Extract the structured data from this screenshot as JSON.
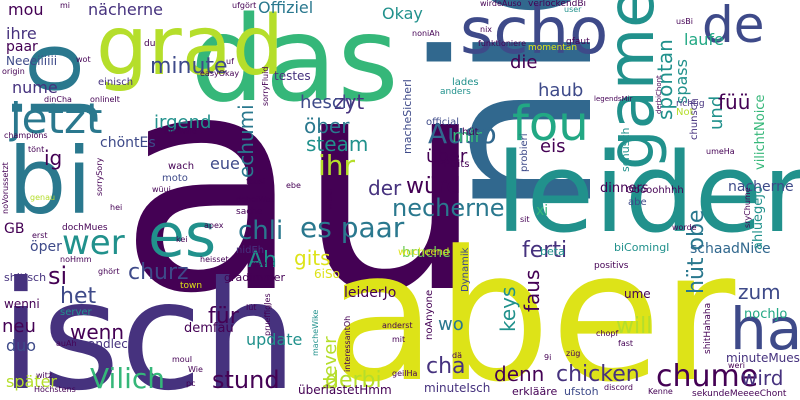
{
  "words": {
    "au": "au",
    "nid": "nid",
    "aber": "aber",
    "isch": "isch",
    "das": "das",
    "leider": "leider",
    "bi": "bi",
    "grad": "grad",
    "jo": "jo",
    "scho": "scho",
    "game": "game",
    "de": "de",
    "fou": "fou",
    "ha": "ha",
    "jetzt": "jetzt",
    "es": "es",
    "wer": "wer",
    "chume": "chume",
    "Vilich": "Vilich",
    "Auso": "Auso",
    "es_paar": "es paar",
    "chli": "chli",
    "nacherne1": "nächerne",
    "nacherne2": "nacherne",
    "necherne": "necherne",
    "minute": "minute",
    "zyt": "zyt",
    "hesch": "hesch",
    "steam": "steam",
    "ober": "öber",
    "ihr": "ihr",
    "uber": "über",
    "wurd": "würd",
    "der": "der",
    "churz": "churz",
    "gits": "gits",
    "fur": "für",
    "stund": "stund",
    "derbi": "derbi",
    "cha": "cha",
    "denn": "denn",
    "chicken": "chicken",
    "wird": "wird",
    "zum": "zum",
    "hut_obe": "hüt obe",
    "ferti": "ferti",
    "faus": "faus",
    "keys": "keys",
    "will": "will",
    "spontan": "spontan",
    "spass": "spass",
    "laufe": "laufe",
    "die": "die",
    "haub": "haub",
    "mir": "mir",
    "eis": "eis",
    "und": "und",
    "fuu": "füü",
    "mou": "mou",
    "ihre": "ihre",
    "paar": "paar",
    "nume": "nume",
    "ig": "ig",
    "si": "si",
    "het": "het",
    "neu": "neu",
    "wenn": "wenn",
    "duo": "duo",
    "spoter": "später",
    "Okay": "Okay",
    "Offiziel": "Offiziel",
    "irgend": "irgend",
    "chontEs": "chöntEs",
    "eue": "eue",
    "echumi": "echumi",
    "Ah": "Ah",
    "update": "update",
    "Never": "Never",
    "wo": "wo",
    "leiderJo": "leiderJo",
    "bruche": "bruche",
    "schaadNice": "schaadNice",
    "vilichtNoice": "vilichtNoice",
    "ahluegeJo": "ahluegeJo",
    "nochJo": "nochJo",
    "dinners": "dinners",
    "xi": "xi",
    "GB": "GB",
    "wenni": "wenni",
    "andlech": "andlech",
    "demfau": "demfau",
    "Neeeiiiiii": "Neeeiiiiii",
    "minuteMues": "minuteMues",
    "uberlastetHmm": "überlastetHmm",
    "minuteIsch": "minuteIsch",
    "erklare": "erklääre",
    "ufstoh": "ufstoh",
    "sekundeMeeeeChont": "sekundeMeeeeChont",
    "shitIsch": "shitIsch",
    "oper": "öper",
    "gradimmer": "gradimmer",
    "nidEh": "nidEh",
    "wucheend": "wucheend",
    "6iSo": "6iSo",
    "noAnyone": "noAnyone",
    "Dynamik": "Dynamik",
    "beta": "beta",
    "biComingI": "biComingI",
    "positivs": "positivs",
    "shitHahaha": "shitHahaha",
    "ume": "ume",
    "Ooooohhhh": "Ooooohhhh",
    "abe": "abe",
    "schusch": "schüsch",
    "machesicherI": "macheSicherI",
    "official": "official",
    "FPPGits": "FPPGits",
    "chunsch": "chunsch",
    "probieri": "probieri",
    "umeHa": "umeHa",
    "richtig": "richtig",
    "lades": "lades",
    "anders": "anders",
    "hut": "hüt",
    "Not": "Not",
    "testes": "testes",
    "einisch": "einisch",
    "dinCha": "dinCha",
    "onlineIt": "onlineIt",
    "champions": "champions",
    "tont": "tönt",
    "mehWie": "mehWie",
    "wach": "wach",
    "moto": "moto",
    "wuui": "wüui",
    "sorrySory": "sorrySory",
    "noVorussetzt": "noVorussetzt",
    "genau": "genau",
    "hei": "hei",
    "dochMues": "dochMues",
    "erst": "erst",
    "deheiWas": "deheiWas",
    "sache": "sache",
    "fausi": "fausi",
    "ebe": "ebe",
    "wider": "wider",
    "sit": "sit",
    "worde": "worde",
    "apex": "apex",
    "kei": "kei",
    "heisset": "heisset",
    "gseht": "gseht",
    "noHmm": "noHmm",
    "ghort": "ghört",
    "town": "town",
    "lut": "lüt",
    "server": "server",
    "machewike": "macheWike",
    "interessantOh": "interessantOh",
    "anderst": "anderst",
    "mit": "mit",
    "da": "dä",
    "9i": "9i",
    "zug": "züg",
    "mouI": "mouI",
    "Wie": "Wie",
    "pc": "pc",
    "witz": "witz",
    "geilHa": "geilHa",
    "discord": "discord",
    "Hochstens": "Höchstens",
    "auAh": "auAh",
    "sorryFluid": "sorryFluid",
    "funktioniere": "funktioniere",
    "momentan": "momentan",
    "gfaut": "gfaut",
    "noniAh": "noniAh",
    "nix": "nix",
    "wirdeAuso": "wirdeAuso",
    "verlockendBi": "verlockendBi",
    "user": "user",
    "usBi": "usBi",
    "legendsMir": "legendsMir",
    "derbiChont": "derbiChont",
    "ufgort": "ufgört",
    "mi": "mi",
    "du": "du",
    "uf": "uf",
    "easyOkay": "easyOkay",
    "origin": "origin",
    "wot": "wot",
    "chopf": "chopf",
    "fast": "fast",
    "weri": "weri",
    "Kenne": "Kenne",
    "srychume": "sryChume",
    "prueffigJes": "prueffigJes",
    "interessant": "interessant"
  },
  "colors": {
    "dark_purple": "#440154",
    "purple": "#46327e",
    "indigo": "#3e4a89",
    "blue": "#31688e",
    "teal_blue": "#2a788e",
    "teal": "#21918c",
    "green_teal": "#22a884",
    "green": "#35b779",
    "light_green": "#6ece58",
    "lime": "#b5de2b",
    "yellow": "#dde318",
    "bright_yellow": "#fde725"
  }
}
